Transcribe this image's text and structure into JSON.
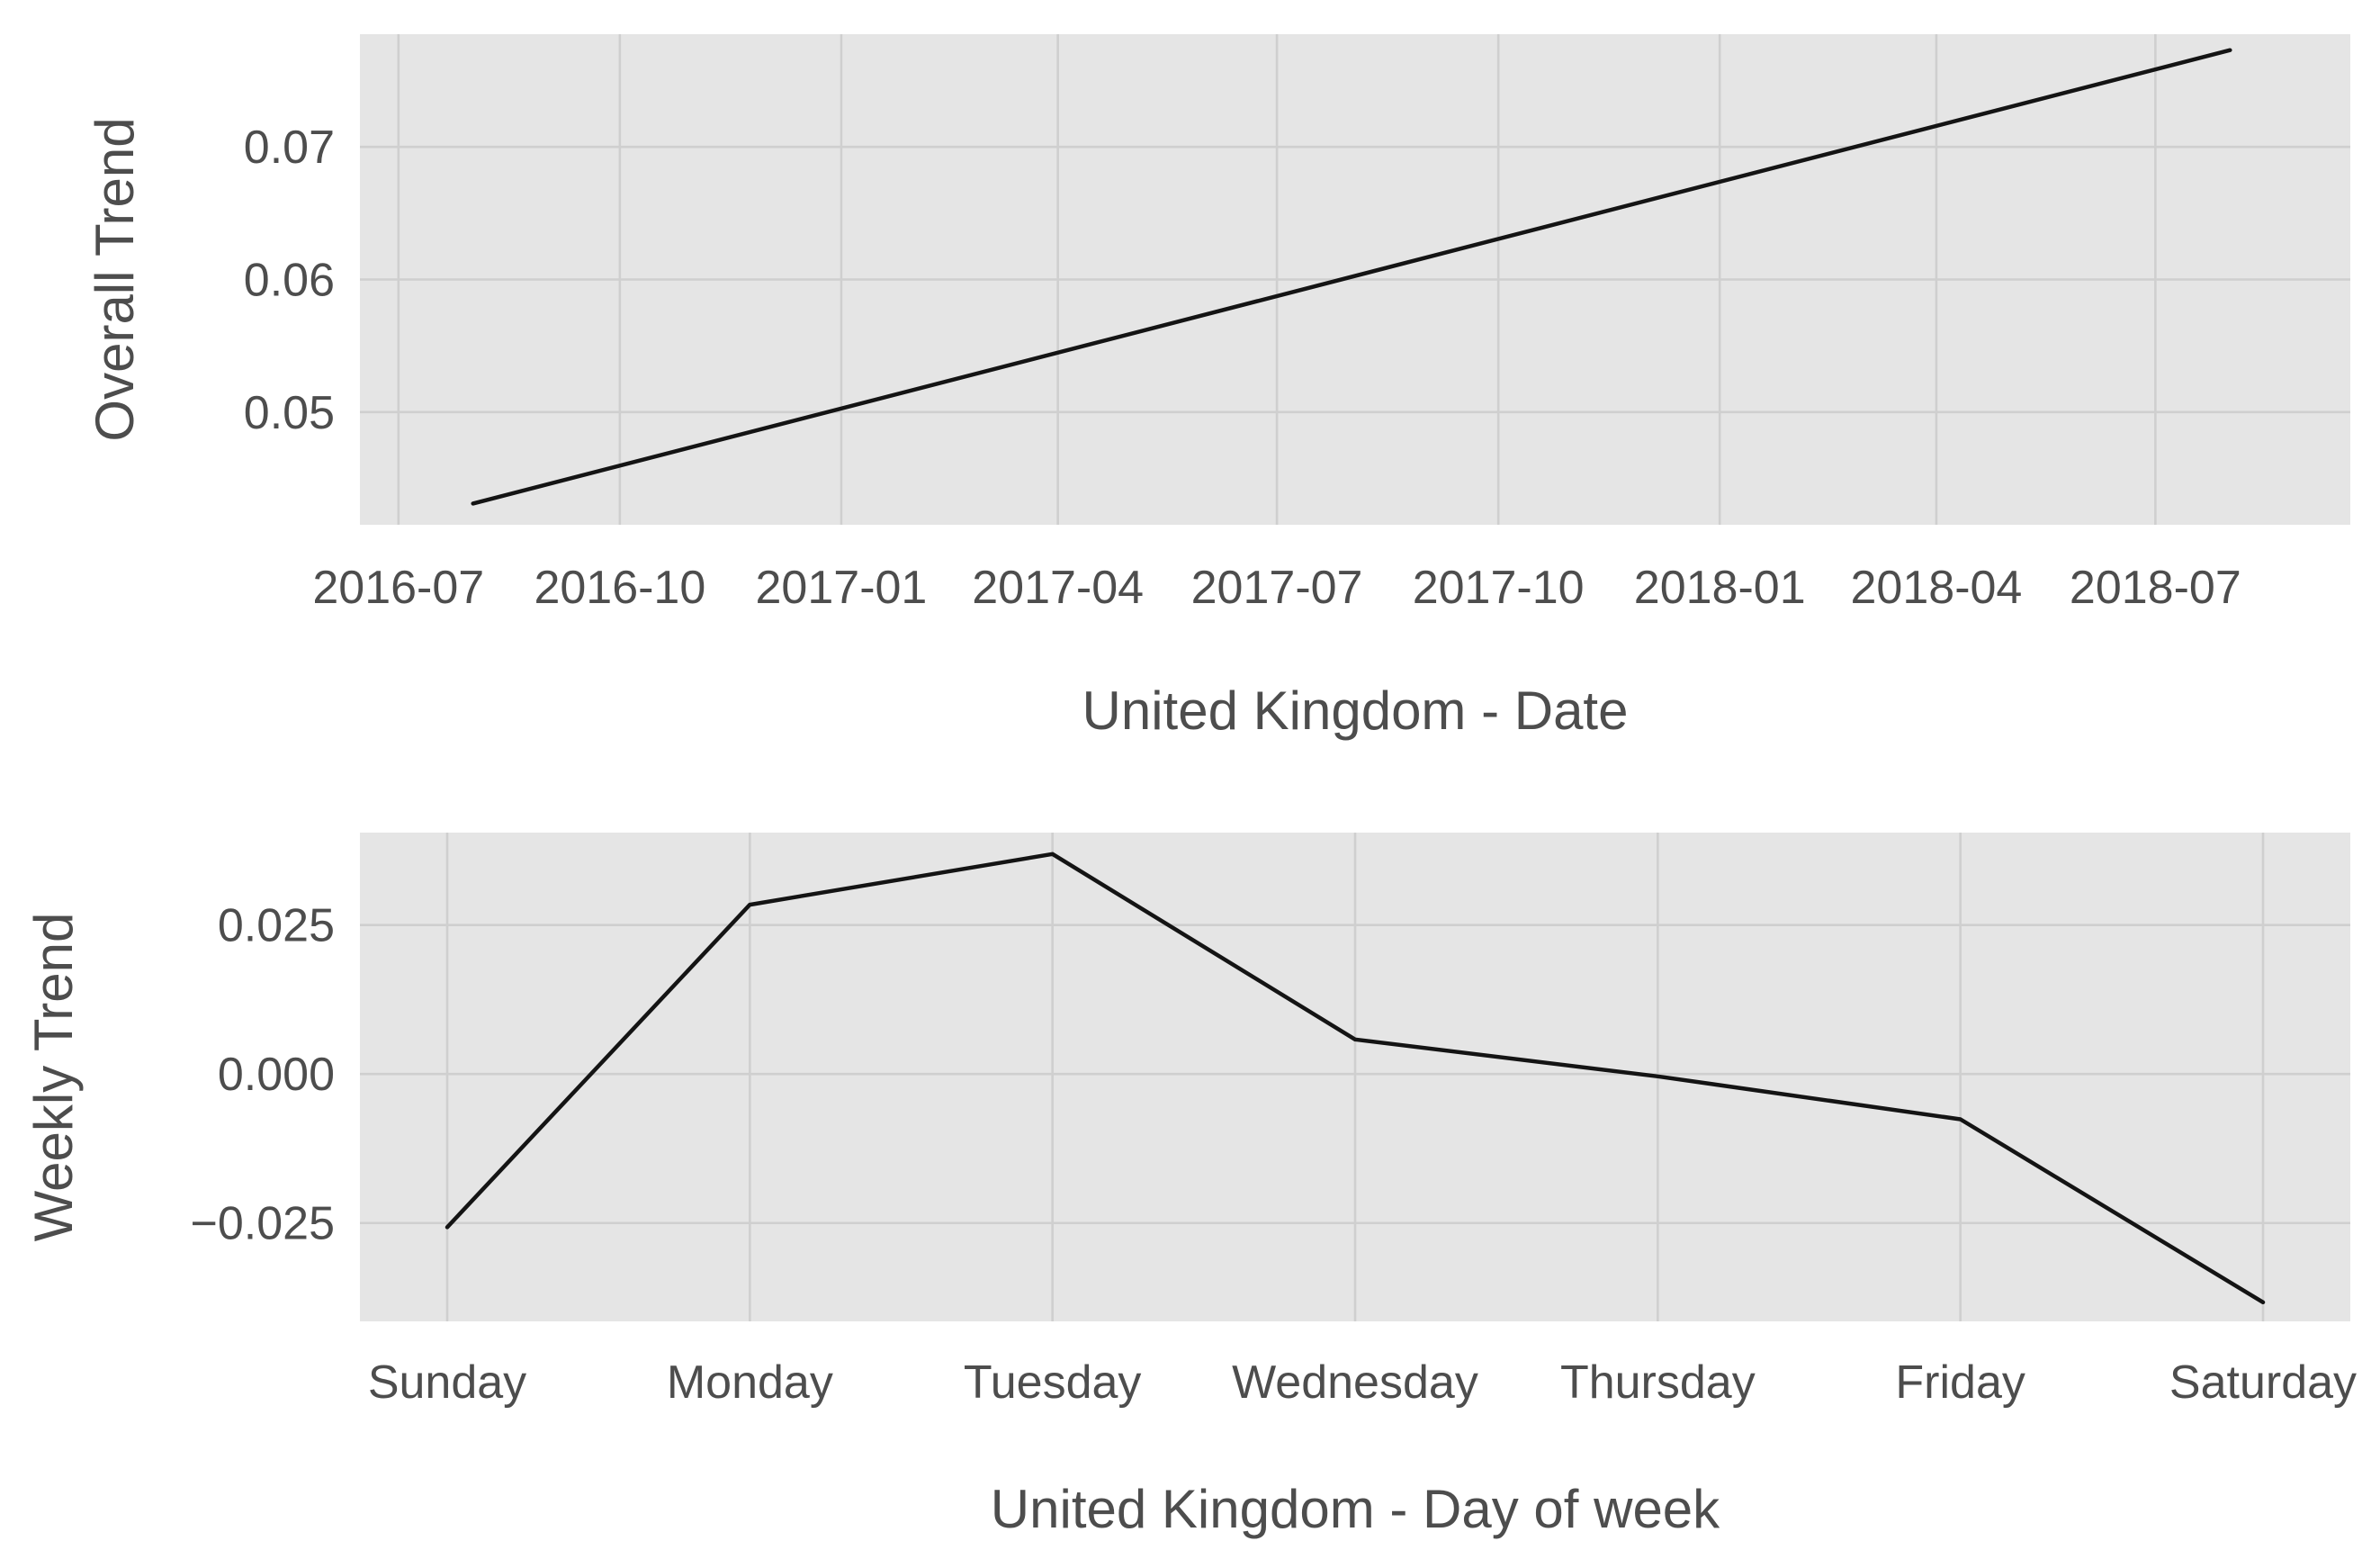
{
  "colors": {
    "panel_background": "#e5e5e5",
    "grid": "#cfcfcf",
    "line": "#141414",
    "text": "#4d4d4d"
  },
  "chart_data": [
    {
      "type": "line",
      "title": "",
      "xlabel": "United Kingdom - Date",
      "ylabel": "Overall Trend",
      "x_type": "date",
      "xlim": [
        "2016-06-15",
        "2018-09-20"
      ],
      "ylim": [
        0.0415,
        0.0785
      ],
      "grid": true,
      "x_ticks": [
        "2016-07-01",
        "2016-10-01",
        "2017-01-01",
        "2017-04-01",
        "2017-07-01",
        "2017-10-01",
        "2018-01-01",
        "2018-04-01",
        "2018-07-01"
      ],
      "x_tick_labels": [
        "2016-07",
        "2016-10",
        "2017-01",
        "2017-04",
        "2017-07",
        "2017-10",
        "2018-01",
        "2018-04",
        "2018-07"
      ],
      "y_ticks": [
        0.05,
        0.06,
        0.07
      ],
      "y_tick_labels": [
        "0.05",
        "0.06",
        "0.07"
      ],
      "series": [
        {
          "x": [
            "2016-08-01",
            "2018-08-01"
          ],
          "y": [
            0.0431,
            0.0773
          ]
        }
      ]
    },
    {
      "type": "line",
      "title": "",
      "xlabel": "United Kingdom - Day of week",
      "ylabel": "Weekly Trend",
      "categories": [
        "Sunday",
        "Monday",
        "Tuesday",
        "Wednesday",
        "Thursday",
        "Friday",
        "Saturday"
      ],
      "ylim": [
        -0.0415,
        0.0405
      ],
      "grid": true,
      "y_ticks": [
        -0.025,
        0.0,
        0.025
      ],
      "y_tick_labels": [
        "−0.025",
        "0.000",
        "0.025"
      ],
      "series": [
        {
          "values": [
            -0.0257,
            0.0284,
            0.0369,
            0.0058,
            -0.0004,
            -0.0076,
            -0.0383
          ]
        }
      ]
    }
  ]
}
